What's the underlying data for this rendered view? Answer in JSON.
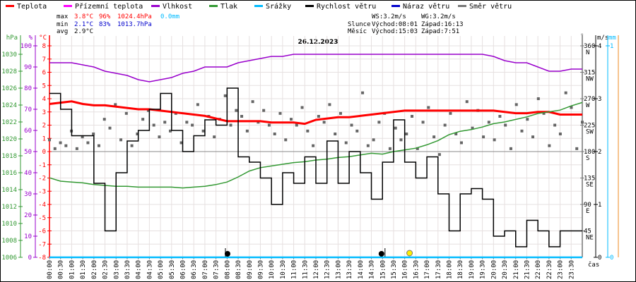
{
  "legend": [
    {
      "label": "Teplota",
      "color": "#ff0000"
    },
    {
      "label": "Přízemní teplota",
      "color": "#ff00ff"
    },
    {
      "label": "Vlhkost",
      "color": "#9900cc"
    },
    {
      "label": "Tlak",
      "color": "#339933"
    },
    {
      "label": "Srážky",
      "color": "#00bbff"
    },
    {
      "label": "Rychlost větru",
      "color": "#000000"
    },
    {
      "label": "Náraz větru",
      "color": "#0000cc"
    },
    {
      "label": "Směr větru",
      "color": "#777777"
    }
  ],
  "stats": {
    "max_label": "max",
    "min_label": "min",
    "avg_label": "avg",
    "max_temp": "3.8°C",
    "max_hum": "96%",
    "max_press": "1024.4hPa",
    "max_rain": "0.0mm",
    "min_temp": "2.1°C",
    "min_hum": "83%",
    "min_press": "1013.7hPa",
    "avg_temp": "2.9°C"
  },
  "astro": {
    "ws": "WS:3.2m/s",
    "wg": "WG:3.2m/s",
    "sun_label": "Slunce",
    "sun_rise": "Východ:08:01",
    "sun_set": "Západ:16:13",
    "moon_label": "Měsíc",
    "moon_rise": "Východ:15:03",
    "moon_set": "Západ:7:51"
  },
  "chart_data": {
    "type": "line",
    "title": "26.12.2023",
    "xlabel": "čas",
    "x_ticks": [
      "00:00",
      "00:30",
      "01:00",
      "01:30",
      "02:00",
      "02:30",
      "03:00",
      "03:30",
      "04:00",
      "04:30",
      "05:00",
      "05:30",
      "06:00",
      "06:30",
      "07:00",
      "07:30",
      "08:00",
      "08:30",
      "09:00",
      "09:30",
      "10:00",
      "10:30",
      "11:00",
      "11:30",
      "12:00",
      "12:30",
      "13:00",
      "13:30",
      "14:00",
      "14:30",
      "15:00",
      "15:30",
      "16:00",
      "16:30",
      "17:00",
      "17:30",
      "18:00",
      "18:30",
      "19:00",
      "19:30",
      "20:00",
      "20:30",
      "21:00",
      "21:30",
      "22:00",
      "22:30",
      "23:00",
      "23:30"
    ],
    "axes": {
      "pressure": {
        "unit": "hPa",
        "range": [
          1006,
          1031
        ],
        "ticks": [
          1006,
          1008,
          1010,
          1012,
          1014,
          1016,
          1018,
          1020,
          1022,
          1024,
          1026,
          1028,
          1030
        ],
        "color": "#339933"
      },
      "humidity": {
        "unit": "%",
        "range": [
          0,
          100
        ],
        "ticks": [
          0,
          10,
          20,
          30,
          40,
          50,
          60,
          70,
          80,
          90,
          100
        ],
        "color": "#9900cc"
      },
      "temperature": {
        "unit": "°C",
        "range": [
          -8,
          8
        ],
        "ticks": [
          -8,
          -7,
          -6,
          -5,
          -4,
          -3,
          -2,
          -1,
          0,
          1,
          2,
          3,
          4,
          5,
          6,
          7,
          8
        ],
        "color": "#ff0000"
      },
      "direction": {
        "unit": "°",
        "range": [
          0,
          360
        ],
        "ticks": [
          {
            "v": 45,
            "l": "45",
            "c": "NE"
          },
          {
            "v": 90,
            "l": "90",
            "c": "E"
          },
          {
            "v": 135,
            "l": "135",
            "c": "SE"
          },
          {
            "v": 180,
            "l": "180",
            "c": "S"
          },
          {
            "v": 225,
            "l": "225",
            "c": "SW"
          },
          {
            "v": 270,
            "l": "270",
            "c": "W"
          },
          {
            "v": 315,
            "l": "315",
            "c": "NW"
          },
          {
            "v": 360,
            "l": "360",
            "c": "N"
          }
        ],
        "color": "#777777"
      },
      "wind": {
        "unit": "m/s",
        "range": [
          0,
          4
        ],
        "ticks": [
          0,
          1,
          2,
          3,
          4
        ],
        "color": "#000000"
      },
      "rain": {
        "unit": "mm",
        "range": [
          0,
          1
        ],
        "ticks": [
          0,
          1
        ],
        "color": "#00bbff"
      }
    },
    "x_hours": [
      0,
      0.5,
      1,
      1.5,
      2,
      2.5,
      3,
      3.5,
      4,
      4.5,
      5,
      5.5,
      6,
      6.5,
      7,
      7.5,
      8,
      8.5,
      9,
      9.5,
      10,
      10.5,
      11,
      11.5,
      12,
      12.5,
      13,
      13.5,
      14,
      14.5,
      15,
      15.5,
      16,
      16.5,
      17,
      17.5,
      18,
      18.5,
      19,
      19.5,
      20,
      20.5,
      21,
      21.5,
      22,
      22.5,
      23,
      23.5,
      24
    ],
    "series": [
      {
        "name": "Teplota",
        "axis": "temperature",
        "color": "#ff0000",
        "values": [
          3.6,
          3.7,
          3.8,
          3.6,
          3.5,
          3.5,
          3.4,
          3.3,
          3.2,
          3.2,
          3.1,
          3.0,
          2.9,
          2.8,
          2.7,
          2.5,
          2.3,
          2.3,
          2.3,
          2.3,
          2.2,
          2.2,
          2.2,
          2.1,
          2.4,
          2.5,
          2.6,
          2.6,
          2.7,
          2.8,
          2.9,
          3.0,
          3.1,
          3.1,
          3.1,
          3.1,
          3.1,
          3.1,
          3.1,
          3.1,
          3.1,
          3.0,
          2.9,
          2.9,
          3.0,
          3.0,
          2.8,
          2.8,
          2.8
        ]
      },
      {
        "name": "Vlhkost",
        "axis": "humidity",
        "color": "#9900cc",
        "values": [
          92,
          92,
          92,
          91,
          90,
          88,
          87,
          86,
          84,
          83,
          84,
          85,
          87,
          88,
          90,
          90,
          90,
          92,
          93,
          94,
          95,
          95,
          96,
          96,
          96,
          96,
          96,
          96,
          96,
          96,
          96,
          96,
          96,
          96,
          96,
          96,
          96,
          96,
          96,
          96,
          95,
          93,
          92,
          92,
          90,
          88,
          88,
          89,
          89
        ]
      },
      {
        "name": "Tlak",
        "axis": "pressure",
        "color": "#339933",
        "values": [
          1015.4,
          1015.0,
          1014.9,
          1014.8,
          1014.6,
          1014.5,
          1014.4,
          1014.4,
          1014.3,
          1014.3,
          1014.3,
          1014.3,
          1014.2,
          1014.3,
          1014.4,
          1014.6,
          1014.9,
          1015.5,
          1016.2,
          1016.6,
          1016.8,
          1017.0,
          1017.2,
          1017.3,
          1017.5,
          1017.6,
          1017.8,
          1017.9,
          1018.1,
          1018.3,
          1018.2,
          1018.5,
          1018.7,
          1018.9,
          1019.3,
          1019.8,
          1020.5,
          1020.9,
          1021.1,
          1021.4,
          1021.8,
          1022.0,
          1022.3,
          1022.6,
          1023.0,
          1023.2,
          1023.4,
          1023.9,
          1024.3
        ]
      },
      {
        "name": "Srážky",
        "axis": "rain",
        "color": "#00bbff",
        "values": [
          0,
          0,
          0,
          0,
          0,
          0,
          0,
          0,
          0,
          0,
          0,
          0,
          0,
          0,
          0,
          0,
          0,
          0,
          0,
          0,
          0,
          0,
          0,
          0,
          0,
          0,
          0,
          0,
          0,
          0,
          0,
          0,
          0,
          0,
          0,
          0,
          0,
          0,
          0,
          0,
          0,
          0,
          0,
          0,
          0,
          0,
          0,
          0,
          0
        ]
      },
      {
        "name": "Rychlost větru",
        "axis": "wind",
        "color": "#000000",
        "values": [
          3.1,
          2.8,
          2.3,
          2.3,
          1.4,
          0.5,
          1.6,
          2.2,
          2.4,
          2.8,
          3.1,
          2.4,
          2.0,
          2.3,
          2.6,
          2.5,
          3.2,
          1.9,
          1.8,
          1.5,
          1.0,
          1.6,
          1.4,
          1.9,
          1.4,
          2.2,
          1.4,
          2.0,
          1.6,
          1.1,
          1.8,
          2.6,
          1.8,
          1.5,
          1.9,
          1.2,
          0.5,
          1.2,
          1.3,
          1.1,
          0.4,
          0.5,
          0.2,
          0.7,
          0.5,
          0.2,
          0.5,
          0.5,
          0.5
        ]
      }
    ],
    "direction_points": [
      200,
      185,
      195,
      190,
      215,
      185,
      205,
      195,
      210,
      190,
      235,
      220,
      260,
      200,
      245,
      190,
      210,
      235,
      250,
      225,
      205,
      230,
      215,
      245,
      195,
      230,
      225,
      260,
      215,
      240,
      205,
      235,
      275,
      225,
      250,
      240,
      215,
      265,
      230,
      250,
      225,
      210,
      245,
      200,
      235,
      225,
      255,
      215,
      190,
      240,
      230,
      260,
      210,
      245,
      195,
      225,
      215,
      280,
      190,
      200,
      230,
      245,
      185,
      220,
      200,
      210,
      240,
      185,
      230,
      255,
      205,
      175,
      225,
      245,
      210,
      195,
      265,
      220,
      250,
      205,
      230,
      200,
      240,
      225,
      185,
      260,
      215,
      235,
      205,
      270,
      245,
      190,
      225,
      210,
      280,
      255,
      185,
      230
    ]
  },
  "markers": {
    "sunrise": 8.02,
    "sunset": 16.22,
    "moonrise": 15.05
  }
}
